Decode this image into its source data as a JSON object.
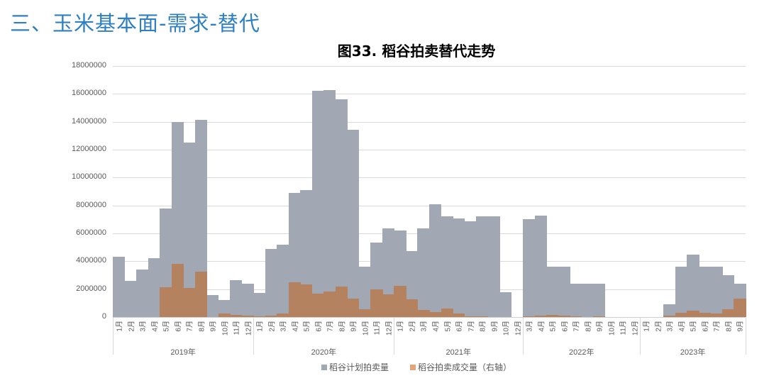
{
  "page": {
    "section_title": "三、玉米基本面-需求-替代"
  },
  "chart_data": {
    "type": "bar",
    "title": "图33. 稻谷拍卖替代走势",
    "xlabel": "",
    "ylabel": "",
    "ylim": [
      0,
      18000000
    ],
    "y_ticks": [
      "0",
      "2000000",
      "4000000",
      "6000000",
      "8000000",
      "10000000",
      "12000000",
      "14000000",
      "16000000",
      "18000000"
    ],
    "grid": true,
    "legend_position": "bottom",
    "years": [
      {
        "label": "2019年",
        "months": [
          "1月",
          "2月",
          "3月",
          "4月",
          "5月",
          "6月",
          "7月",
          "8月",
          "9月",
          "10月",
          "11月",
          "12月"
        ]
      },
      {
        "label": "2020年",
        "months": [
          "1月",
          "2月",
          "3月",
          "4月",
          "5月",
          "6月",
          "7月",
          "8月",
          "9月",
          "10月",
          "11月",
          "12月"
        ]
      },
      {
        "label": "2021年",
        "months": [
          "1月",
          "2月",
          "3月",
          "4月",
          "5月",
          "6月",
          "7月",
          "8月",
          "9月",
          "10月",
          "12月"
        ]
      },
      {
        "label": "2022年",
        "months": [
          "3月",
          "4月",
          "5月",
          "6月",
          "7月",
          "8月",
          "9月",
          "10月",
          "11月",
          "12月"
        ]
      },
      {
        "label": "2023年",
        "months": [
          "1月",
          "2月",
          "3月",
          "4月",
          "5月",
          "6月",
          "7月",
          "8月",
          "9月"
        ]
      }
    ],
    "series": [
      {
        "name": "稻谷计划拍卖量",
        "color": "#a2a8b3",
        "values": [
          4300000,
          2600000,
          3400000,
          4200000,
          7800000,
          14000000,
          12500000,
          14150000,
          1600000,
          1200000,
          2650000,
          2400000,
          1750000,
          4900000,
          5200000,
          8900000,
          9100000,
          16200000,
          16250000,
          15600000,
          13400000,
          3600000,
          5350000,
          6350000,
          6200000,
          4750000,
          6350000,
          8100000,
          7200000,
          7050000,
          6850000,
          7200000,
          7200000,
          1800000,
          0,
          7000000,
          7250000,
          3600000,
          3600000,
          2400000,
          2400000,
          2400000,
          0,
          0,
          0,
          0,
          0,
          900000,
          3600000,
          4500000,
          3600000,
          3600000,
          3000000,
          2400000
        ]
      },
      {
        "name": "稻谷拍卖成交量（右轴）",
        "color": "#b5825f",
        "values": [
          0,
          0,
          0,
          0,
          2150000,
          3800000,
          2100000,
          3250000,
          0,
          250000,
          150000,
          100000,
          50000,
          100000,
          250000,
          2500000,
          2350000,
          1700000,
          1850000,
          2200000,
          1300000,
          550000,
          2000000,
          1650000,
          2250000,
          1250000,
          500000,
          350000,
          600000,
          250000,
          50000,
          50000,
          0,
          0,
          0,
          50000,
          100000,
          150000,
          100000,
          50000,
          0,
          50000,
          0,
          0,
          0,
          0,
          0,
          100000,
          300000,
          450000,
          300000,
          250000,
          550000,
          1300000
        ]
      }
    ]
  },
  "legend": {
    "items": [
      {
        "label": "稻谷计划拍卖量",
        "color": "#a2a8b3"
      },
      {
        "label": "稻谷拍卖成交量（右轴）",
        "color": "#e0a57a"
      }
    ]
  }
}
